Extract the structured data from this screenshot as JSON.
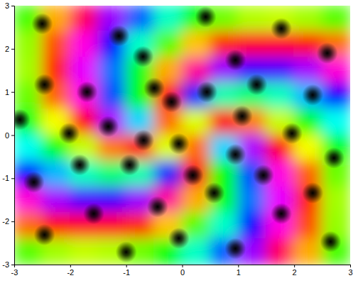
{
  "chart_data": {
    "type": "heatmap",
    "xlim": [
      -3,
      3
    ],
    "ylim": [
      -3,
      3
    ],
    "xticks": [
      -3,
      -2,
      -1,
      0,
      1,
      2,
      3
    ],
    "yticks": [
      -3,
      -2,
      -1,
      0,
      1,
      2,
      3
    ],
    "x": [
      -2.75,
      -2.25,
      -1.75,
      -1.25,
      -0.75,
      -0.25,
      0.25,
      0.75,
      1.25,
      1.75,
      2.25,
      2.75
    ],
    "y": [
      2.7,
      2.1,
      1.5,
      0.9,
      0.3,
      -0.3,
      -0.9,
      -1.5,
      -2.1,
      -2.7
    ],
    "cells": [
      [
        -76,
        -140,
        158,
        96,
        38,
        -14,
        -56,
        -86,
        -102,
        -106,
        -98,
        -80
      ],
      [
        -95,
        -162,
        127,
        56,
        -13,
        -80,
        -134,
        -171,
        170,
        169,
        -178,
        -155
      ],
      [
        -98,
        -171,
        114,
        33,
        -52,
        -140,
        144,
        96,
        75,
        78,
        99,
        130
      ],
      [
        -85,
        -157,
        127,
        42,
        -61,
        174,
        50,
        -19,
        -32,
        -15,
        17,
        59
      ],
      [
        -53,
        -118,
        175,
        101,
        10,
        -154,
        -112,
        -176,
        -151,
        -107,
        -58,
        -3
      ],
      [
        -3,
        -58,
        -107,
        -151,
        -176,
        -112,
        -154,
        10,
        101,
        175,
        -118,
        -53
      ],
      [
        59,
        17,
        -15,
        -32,
        -19,
        50,
        174,
        -61,
        42,
        127,
        -157,
        -85
      ],
      [
        130,
        99,
        78,
        75,
        96,
        144,
        -140,
        -52,
        33,
        114,
        -171,
        -98
      ],
      [
        -155,
        -178,
        169,
        170,
        -171,
        -134,
        -80,
        -13,
        56,
        127,
        -162,
        -95
      ],
      [
        -80,
        -98,
        -106,
        -102,
        -86,
        -56,
        -14,
        38,
        96,
        158,
        -140,
        -76
      ]
    ],
    "color_range": [
      -180,
      180
    ],
    "zeros": [
      {
        "x": -2.5,
        "y": 2.58
      },
      {
        "x": -1.13,
        "y": 2.3
      },
      {
        "x": 0.42,
        "y": 2.74
      },
      {
        "x": 1.77,
        "y": 2.47
      },
      {
        "x": 2.59,
        "y": 1.9
      },
      {
        "x": -0.7,
        "y": 1.82
      },
      {
        "x": 0.95,
        "y": 1.74
      },
      {
        "x": 2.33,
        "y": 0.93
      },
      {
        "x": -2.9,
        "y": 0.36
      },
      {
        "x": -2.46,
        "y": 1.17
      },
      {
        "x": -1.7,
        "y": 1.0
      },
      {
        "x": 2.71,
        "y": -0.53
      },
      {
        "x": 1.96,
        "y": 0.04
      },
      {
        "x": -2.65,
        "y": -1.09
      },
      {
        "x": -1.83,
        "y": -0.69
      },
      {
        "x": -2.46,
        "y": -2.31
      },
      {
        "x": -1.58,
        "y": -1.82
      },
      {
        "x": -1.0,
        "y": -2.71
      },
      {
        "x": -0.06,
        "y": -2.39
      },
      {
        "x": 0.95,
        "y": -2.63
      },
      {
        "x": 1.77,
        "y": -1.82
      },
      {
        "x": 2.65,
        "y": -2.47
      },
      {
        "x": 2.33,
        "y": -1.34
      },
      {
        "x": -0.44,
        "y": -1.66
      },
      {
        "x": 0.57,
        "y": -1.34
      },
      {
        "x": 1.45,
        "y": -0.93
      },
      {
        "x": -1.32,
        "y": 0.2
      },
      {
        "x": -0.94,
        "y": -0.69
      },
      {
        "x": -0.19,
        "y": 0.77
      },
      {
        "x": 0.44,
        "y": 1.0
      },
      {
        "x": 1.07,
        "y": 0.44
      },
      {
        "x": 0.95,
        "y": -0.45
      },
      {
        "x": -0.06,
        "y": -0.2
      },
      {
        "x": -0.69,
        "y": -0.12
      },
      {
        "x": 0.19,
        "y": -0.93
      },
      {
        "x": 1.33,
        "y": 1.17
      },
      {
        "x": -0.5,
        "y": 1.09
      },
      {
        "x": -2.02,
        "y": 0.04
      }
    ]
  }
}
